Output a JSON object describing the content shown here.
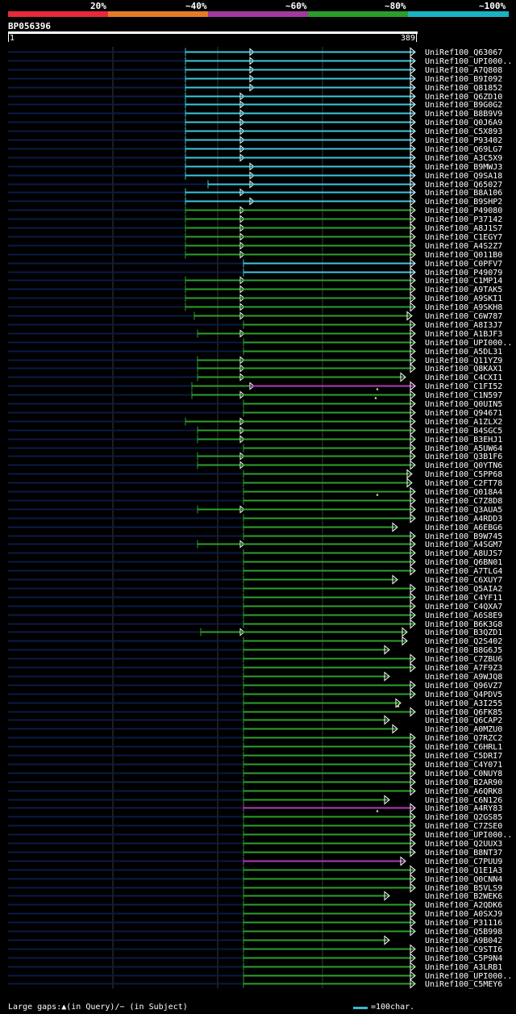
{
  "legend": {
    "segments": [
      {
        "label": "20%",
        "color": "#e8293a"
      },
      {
        "label": "~40%",
        "color": "#e67a26"
      },
      {
        "label": "~60%",
        "color": "#a23a9e"
      },
      {
        "label": "~80%",
        "color": "#2a9d2a"
      },
      {
        "label": "~100%",
        "color": "#19b3c2"
      }
    ]
  },
  "query": {
    "id": "BP056396",
    "start": "1",
    "end": "389"
  },
  "colors": {
    "cyan": "#3cc8dc",
    "green": "#2ba02b",
    "magenta": "#b03ab8",
    "tail": "#0c1a45",
    "grid": "#3a3a3a",
    "dot": "#ffff99"
  },
  "hits": [
    {
      "id": "UniRef100_Q63067",
      "t": "c",
      "s": 230,
      "b": [
        310
      ],
      "e": 514
    },
    {
      "id": "UniRef100_UPI000..",
      "t": "c",
      "s": 230,
      "b": [
        310
      ],
      "e": 514
    },
    {
      "id": "UniRef100_A7Q808",
      "t": "c",
      "s": 230,
      "b": [
        310
      ],
      "e": 514
    },
    {
      "id": "UniRef100_B9I092",
      "t": "c",
      "s": 230,
      "b": [
        310
      ],
      "e": 514
    },
    {
      "id": "UniRef100_Q81852",
      "t": "c",
      "s": 230,
      "b": [
        310
      ],
      "e": 514
    },
    {
      "id": "UniRef100_Q6ZD10",
      "t": "c",
      "s": 230,
      "b": [
        298
      ],
      "e": 514
    },
    {
      "id": "UniRef100_B9G0G2",
      "t": "c",
      "s": 230,
      "b": [
        298
      ],
      "e": 514
    },
    {
      "id": "UniRef100_B8B9V9",
      "t": "c",
      "s": 230,
      "b": [
        298
      ],
      "e": 514
    },
    {
      "id": "UniRef100_Q0J6A9",
      "t": "c",
      "s": 230,
      "b": [
        298
      ],
      "e": 514
    },
    {
      "id": "UniRef100_C5X893",
      "t": "c",
      "s": 230,
      "b": [
        298
      ],
      "e": 514
    },
    {
      "id": "UniRef100_P93402",
      "t": "c",
      "s": 230,
      "b": [
        298
      ],
      "e": 514
    },
    {
      "id": "UniRef100_Q69LG7",
      "t": "c",
      "s": 230,
      "b": [
        298
      ],
      "e": 514
    },
    {
      "id": "UniRef100_A3C5X9",
      "t": "c",
      "s": 230,
      "b": [
        298
      ],
      "e": 514
    },
    {
      "id": "UniRef100_B9MWJ3",
      "t": "c",
      "s": 230,
      "b": [
        310
      ],
      "e": 514
    },
    {
      "id": "UniRef100_Q9SA18",
      "t": "c",
      "s": 230,
      "b": [
        310
      ],
      "e": 514
    },
    {
      "id": "UniRef100_Q65027",
      "t": "c",
      "s": 258,
      "b": [
        310
      ],
      "e": 514
    },
    {
      "id": "UniRef100_B8A106",
      "t": "c",
      "s": 230,
      "b": [
        298
      ],
      "e": 514
    },
    {
      "id": "UniRef100_B9SHP2",
      "t": "c",
      "s": 230,
      "b": [
        310
      ],
      "e": 514
    },
    {
      "id": "UniRef100_P49080",
      "t": "g",
      "s": 230,
      "b": [
        298
      ],
      "e": 514
    },
    {
      "id": "UniRef100_P37142",
      "t": "g",
      "s": 230,
      "b": [
        298
      ],
      "e": 514
    },
    {
      "id": "UniRef100_A8J1S7",
      "t": "g",
      "s": 230,
      "b": [
        298
      ],
      "e": 514
    },
    {
      "id": "UniRef100_C1EGY7",
      "t": "g",
      "s": 230,
      "b": [
        298
      ],
      "e": 514
    },
    {
      "id": "UniRef100_A4S2Z7",
      "t": "g",
      "s": 230,
      "b": [
        298
      ],
      "e": 514
    },
    {
      "id": "UniRef100_Q011B0",
      "t": "g",
      "s": 230,
      "b": [
        298
      ],
      "e": 514
    },
    {
      "id": "UniRef100_C0PFV7",
      "t": "c",
      "s": 302,
      "b": [],
      "e": 514
    },
    {
      "id": "UniRef100_P49079",
      "t": "c",
      "s": 302,
      "b": [],
      "e": 514
    },
    {
      "id": "UniRef100_C1MP14",
      "t": "g",
      "s": 230,
      "b": [
        298
      ],
      "e": 514
    },
    {
      "id": "UniRef100_A9TAK5",
      "t": "g",
      "s": 230,
      "b": [
        298
      ],
      "e": 514
    },
    {
      "id": "UniRef100_A9SKI1",
      "t": "g",
      "s": 230,
      "b": [
        298
      ],
      "e": 514
    },
    {
      "id": "UniRef100_A9SKH8",
      "t": "g",
      "s": 230,
      "b": [
        298
      ],
      "e": 514
    },
    {
      "id": "UniRef100_C6W787",
      "t": "g",
      "s": 241,
      "b": [
        298
      ],
      "e": 510
    },
    {
      "id": "UniRef100_A8I3J7",
      "t": "g",
      "s": 302,
      "b": [],
      "e": 514
    },
    {
      "id": "UniRef100_A1BJF3",
      "t": "g",
      "s": 245,
      "b": [
        298
      ],
      "e": 514
    },
    {
      "id": "UniRef100_UPI000..",
      "t": "g",
      "s": 302,
      "b": [],
      "e": 514
    },
    {
      "id": "UniRef100_A5DL31",
      "t": "g",
      "s": 302,
      "b": [],
      "e": 514
    },
    {
      "id": "UniRef100_Q11YZ9",
      "t": "g",
      "s": 245,
      "b": [
        298
      ],
      "e": 514
    },
    {
      "id": "UniRef100_Q8KAX1",
      "t": "g",
      "s": 245,
      "b": [
        298
      ],
      "e": 514
    },
    {
      "id": "UniRef100_C4CXI1",
      "t": "g",
      "s": 245,
      "b": [
        298
      ],
      "e": 502
    },
    {
      "id": "UniRef100_C1FI52",
      "t": "m",
      "s": 238,
      "b": [
        310
      ],
      "e": 514,
      "pre": "g",
      "dot": 468
    },
    {
      "id": "UniRef100_C1N597",
      "t": "g",
      "s": 238,
      "b": [
        298
      ],
      "e": 514,
      "dot": 466
    },
    {
      "id": "UniRef100_Q0UIN5",
      "t": "g",
      "s": 302,
      "b": [],
      "e": 514
    },
    {
      "id": "UniRef100_Q94671",
      "t": "g",
      "s": 302,
      "b": [],
      "e": 514
    },
    {
      "id": "UniRef100_A1ZLX2",
      "t": "g",
      "s": 230,
      "b": [
        298
      ],
      "e": 514
    },
    {
      "id": "UniRef100_B4SGC5",
      "t": "g",
      "s": 245,
      "b": [
        298
      ],
      "e": 514
    },
    {
      "id": "UniRef100_B3EHJ1",
      "t": "g",
      "s": 245,
      "b": [
        298
      ],
      "e": 514
    },
    {
      "id": "UniRef100_A5UW64",
      "t": "g",
      "s": 302,
      "b": [],
      "e": 514
    },
    {
      "id": "UniRef100_Q3B1F6",
      "t": "g",
      "s": 245,
      "b": [
        298
      ],
      "e": 514
    },
    {
      "id": "UniRef100_Q0YTN6",
      "t": "g",
      "s": 245,
      "b": [
        298
      ],
      "e": 514
    },
    {
      "id": "UniRef100_C5PP68",
      "t": "g",
      "s": 302,
      "b": [],
      "e": 510
    },
    {
      "id": "UniRef100_C2FT78",
      "t": "g",
      "s": 302,
      "b": [],
      "e": 510
    },
    {
      "id": "UniRef100_Q018A4",
      "t": "g",
      "s": 302,
      "b": [],
      "e": 514,
      "dot": 468
    },
    {
      "id": "UniRef100_C7Z8D8",
      "t": "g",
      "s": 302,
      "b": [],
      "e": 514
    },
    {
      "id": "UniRef100_Q3AUA5",
      "t": "g",
      "s": 245,
      "b": [
        298
      ],
      "e": 514
    },
    {
      "id": "UniRef100_A4RDD3",
      "t": "g",
      "s": 302,
      "b": [],
      "e": 514
    },
    {
      "id": "UniRef100_A6EBG6",
      "t": "g",
      "s": 302,
      "b": [],
      "e": 492
    },
    {
      "id": "UniRef100_B9W745",
      "t": "g",
      "s": 302,
      "b": [],
      "e": 514
    },
    {
      "id": "UniRef100_A4SGM7",
      "t": "g",
      "s": 245,
      "b": [
        298
      ],
      "e": 514
    },
    {
      "id": "UniRef100_A8UJS7",
      "t": "g",
      "s": 302,
      "b": [],
      "e": 514
    },
    {
      "id": "UniRef100_Q6BN01",
      "t": "g",
      "s": 302,
      "b": [],
      "e": 514
    },
    {
      "id": "UniRef100_A7TLG4",
      "t": "g",
      "s": 302,
      "b": [],
      "e": 514
    },
    {
      "id": "UniRef100_C6XUY7",
      "t": "g",
      "s": 302,
      "b": [],
      "e": 492
    },
    {
      "id": "UniRef100_Q5AIA2",
      "t": "g",
      "s": 302,
      "b": [],
      "e": 514
    },
    {
      "id": "UniRef100_C4YF11",
      "t": "g",
      "s": 302,
      "b": [],
      "e": 514
    },
    {
      "id": "UniRef100_C4QXA7",
      "t": "g",
      "s": 302,
      "b": [],
      "e": 514
    },
    {
      "id": "UniRef100_A6S8E9",
      "t": "g",
      "s": 302,
      "b": [],
      "e": 514
    },
    {
      "id": "UniRef100_B6K3G8",
      "t": "g",
      "s": 302,
      "b": [],
      "e": 514
    },
    {
      "id": "UniRef100_B3QZD1",
      "t": "g",
      "s": 249,
      "b": [
        298
      ],
      "e": 504
    },
    {
      "id": "UniRef100_Q2S402",
      "t": "g",
      "s": 302,
      "b": [],
      "e": 504
    },
    {
      "id": "UniRef100_B8G6J5",
      "t": "g",
      "s": 302,
      "b": [],
      "e": 482
    },
    {
      "id": "UniRef100_C7ZBU6",
      "t": "g",
      "s": 302,
      "b": [],
      "e": 514
    },
    {
      "id": "UniRef100_A7F9Z3",
      "t": "g",
      "s": 302,
      "b": [],
      "e": 514
    },
    {
      "id": "UniRef100_A9WJQ8",
      "t": "g",
      "s": 302,
      "b": [],
      "e": 482
    },
    {
      "id": "UniRef100_Q96VZ7",
      "t": "g",
      "s": 302,
      "b": [],
      "e": 514
    },
    {
      "id": "UniRef100_Q4PDV5",
      "t": "g",
      "s": 302,
      "b": [],
      "e": 514
    },
    {
      "id": "UniRef100_A3I255",
      "t": "g",
      "s": 302,
      "b": [],
      "e": 496,
      "dot": 494
    },
    {
      "id": "UniRef100_Q6FK85",
      "t": "g",
      "s": 302,
      "b": [],
      "e": 514
    },
    {
      "id": "UniRef100_Q6CAP2",
      "t": "g",
      "s": 302,
      "b": [],
      "e": 482
    },
    {
      "id": "UniRef100_A0MZU0",
      "t": "g",
      "s": 302,
      "b": [],
      "e": 492
    },
    {
      "id": "UniRef100_Q7RZC2",
      "t": "g",
      "s": 302,
      "b": [],
      "e": 514
    },
    {
      "id": "UniRef100_C6HRL1",
      "t": "g",
      "s": 302,
      "b": [],
      "e": 514
    },
    {
      "id": "UniRef100_C5DRI7",
      "t": "g",
      "s": 302,
      "b": [],
      "e": 514
    },
    {
      "id": "UniRef100_C4Y071",
      "t": "g",
      "s": 302,
      "b": [],
      "e": 514
    },
    {
      "id": "UniRef100_C0NUY8",
      "t": "g",
      "s": 302,
      "b": [],
      "e": 514
    },
    {
      "id": "UniRef100_B2AR90",
      "t": "g",
      "s": 302,
      "b": [],
      "e": 514
    },
    {
      "id": "UniRef100_A6QRK8",
      "t": "g",
      "s": 302,
      "b": [],
      "e": 514
    },
    {
      "id": "UniRef100_C6N126",
      "t": "g",
      "s": 302,
      "b": [],
      "e": 482
    },
    {
      "id": "UniRef100_A4RY83",
      "t": "m",
      "s": 302,
      "b": [],
      "e": 514,
      "dot": 468
    },
    {
      "id": "UniRef100_Q2GS85",
      "t": "g",
      "s": 302,
      "b": [],
      "e": 514
    },
    {
      "id": "UniRef100_C7ZSE0",
      "t": "g",
      "s": 302,
      "b": [],
      "e": 514
    },
    {
      "id": "UniRef100_UPI000..",
      "t": "g",
      "s": 302,
      "b": [],
      "e": 514
    },
    {
      "id": "UniRef100_Q2UUX3",
      "t": "g",
      "s": 302,
      "b": [],
      "e": 514
    },
    {
      "id": "UniRef100_B8NT37",
      "t": "g",
      "s": 302,
      "b": [],
      "e": 514
    },
    {
      "id": "UniRef100_C7PUU9",
      "t": "m",
      "s": 302,
      "b": [],
      "e": 502
    },
    {
      "id": "UniRef100_Q1E1A3",
      "t": "g",
      "s": 302,
      "b": [],
      "e": 514
    },
    {
      "id": "UniRef100_Q0CNN4",
      "t": "g",
      "s": 302,
      "b": [],
      "e": 514
    },
    {
      "id": "UniRef100_B5VLS9",
      "t": "g",
      "s": 302,
      "b": [],
      "e": 514
    },
    {
      "id": "UniRef100_B2WEK6",
      "t": "g",
      "s": 302,
      "b": [],
      "e": 482
    },
    {
      "id": "UniRef100_A2QDK6",
      "t": "g",
      "s": 302,
      "b": [],
      "e": 514
    },
    {
      "id": "UniRef100_A0SXJ9",
      "t": "g",
      "s": 302,
      "b": [],
      "e": 514
    },
    {
      "id": "UniRef100_P31116",
      "t": "g",
      "s": 302,
      "b": [],
      "e": 514
    },
    {
      "id": "UniRef100_Q5B998",
      "t": "g",
      "s": 302,
      "b": [],
      "e": 514
    },
    {
      "id": "UniRef100_A9B042",
      "t": "g",
      "s": 302,
      "b": [],
      "e": 482
    },
    {
      "id": "UniRef100_C9STI6",
      "t": "g",
      "s": 302,
      "b": [],
      "e": 514
    },
    {
      "id": "UniRef100_C5P9N4",
      "t": "g",
      "s": 302,
      "b": [],
      "e": 514
    },
    {
      "id": "UniRef100_A3LRB1",
      "t": "g",
      "s": 302,
      "b": [],
      "e": 514
    },
    {
      "id": "UniRef100_UPI000..",
      "t": "g",
      "s": 302,
      "b": [],
      "e": 514
    },
    {
      "id": "UniRef100_C5MEY6",
      "t": "g",
      "s": 302,
      "b": [],
      "e": 514
    }
  ],
  "footer": {
    "gaps_text": "Large gaps:▲(in Query)/− (in Subject)",
    "scale_text": "=100char."
  }
}
